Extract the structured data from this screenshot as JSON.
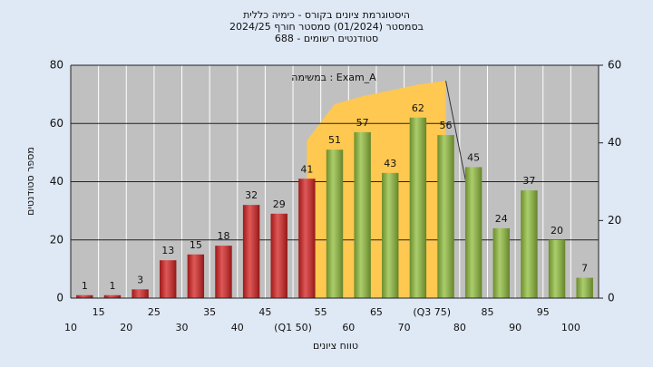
{
  "chart_data": {
    "type": "bar",
    "title": [
      "היסטוגרמת ציונים בקורס - כימיה כללית",
      "בסמסטר  (01/2024)  סמסטר חורף 2024/25",
      "סטודנטים רשומים - 688"
    ],
    "annotation": "במשימה : Exam_A",
    "x_label": "טווח ציונים",
    "y_label": "מספר סטודנטים",
    "categories": [
      "10",
      "15",
      "20",
      "25",
      "30",
      "35",
      "40",
      "45",
      "(Q1 50)",
      "55",
      "60",
      "65",
      "70",
      "(Q3 75)",
      "80",
      "85",
      "90",
      "95",
      "100"
    ],
    "values": [
      1,
      1,
      3,
      13,
      15,
      18,
      32,
      29,
      41,
      51,
      57,
      43,
      62,
      56,
      45,
      24,
      37,
      20,
      7
    ],
    "colors": [
      "#d42020",
      "#d42020",
      "#d42020",
      "#d42020",
      "#d42020",
      "#d42020",
      "#d42020",
      "#d42020",
      "#d42020",
      "#8fbc3a",
      "#8fbc3a",
      "#8fbc3a",
      "#8fbc3a",
      "#8fbc3a",
      "#8fbc3a",
      "#8fbc3a",
      "#8fbc3a",
      "#8fbc3a",
      "#8fbc3a"
    ],
    "ylim": [
      0,
      80
    ],
    "yticks": [
      0,
      20,
      40,
      60,
      80
    ],
    "y2lim": [
      0,
      60
    ],
    "y2ticks": [
      0,
      20,
      40,
      60
    ],
    "area": {
      "axis": "y2",
      "color": "#ffc850",
      "values": [
        null,
        null,
        null,
        null,
        null,
        null,
        null,
        null,
        40.6,
        50,
        52,
        53.5,
        55,
        56,
        20,
        null,
        null,
        null,
        null
      ]
    },
    "grid": true
  }
}
